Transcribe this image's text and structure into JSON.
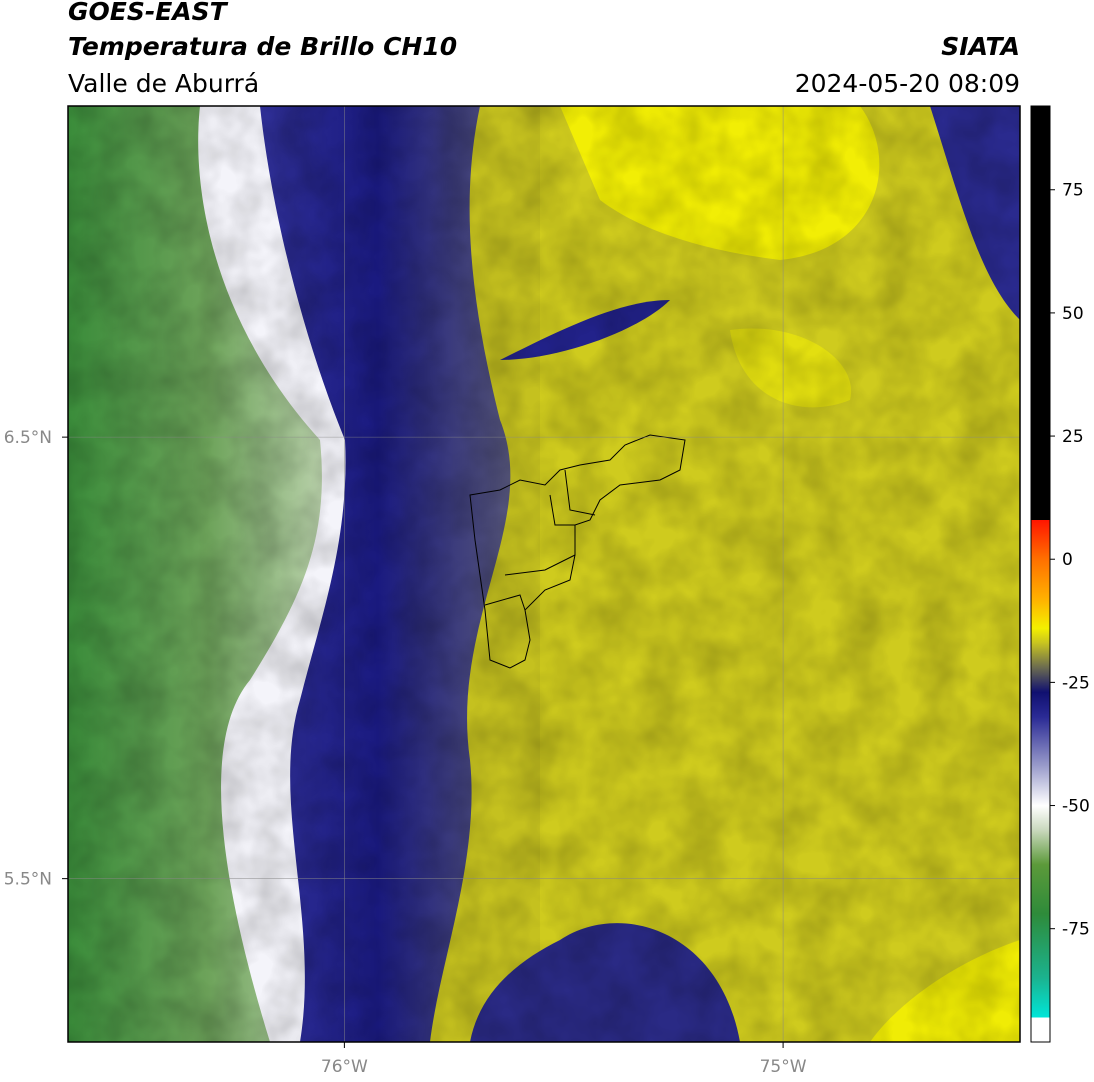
{
  "header": {
    "line1": "GOES-EAST",
    "line2": "Temperatura de Brillo CH10",
    "source": "SIATA",
    "region": "Valle de Aburrá",
    "datetime": "2024-05-20 08:09"
  },
  "map": {
    "xlim": [
      -76.63,
      -74.46
    ],
    "ylim": [
      5.13,
      7.25
    ],
    "xticks": [
      {
        "value": -76,
        "label": "76°W"
      },
      {
        "value": -75,
        "label": "75°W"
      }
    ],
    "yticks": [
      {
        "value": 6.5,
        "label": "6.5°N"
      },
      {
        "value": 5.5,
        "label": "5.5°N"
      }
    ]
  },
  "colorbar": {
    "lim": [
      -98,
      92
    ],
    "ticks": [
      75,
      50,
      25,
      0,
      -25,
      -50,
      -75
    ],
    "colormap": [
      {
        "value": -98,
        "color": "#ffffff"
      },
      {
        "value": -93,
        "color": "#ffffff"
      },
      {
        "value": -93,
        "color": "#00e5d8"
      },
      {
        "value": -85,
        "color": "#1bb38f"
      },
      {
        "value": -72,
        "color": "#2e8b3a"
      },
      {
        "value": -62,
        "color": "#5c9a3a"
      },
      {
        "value": -55,
        "color": "#c9d8bd"
      },
      {
        "value": -50,
        "color": "#ffffff"
      },
      {
        "value": -42,
        "color": "#9a9ccb"
      },
      {
        "value": -32,
        "color": "#2a2a95"
      },
      {
        "value": -27,
        "color": "#101070"
      },
      {
        "value": -22,
        "color": "#6b6b50"
      },
      {
        "value": -17,
        "color": "#c8c420"
      },
      {
        "value": -14,
        "color": "#f4f000"
      },
      {
        "value": -8,
        "color": "#ffb000"
      },
      {
        "value": 0,
        "color": "#ff7000"
      },
      {
        "value": 8,
        "color": "#ff1500"
      },
      {
        "value": 8,
        "color": "#000000"
      },
      {
        "value": 92,
        "color": "#000000"
      }
    ]
  }
}
